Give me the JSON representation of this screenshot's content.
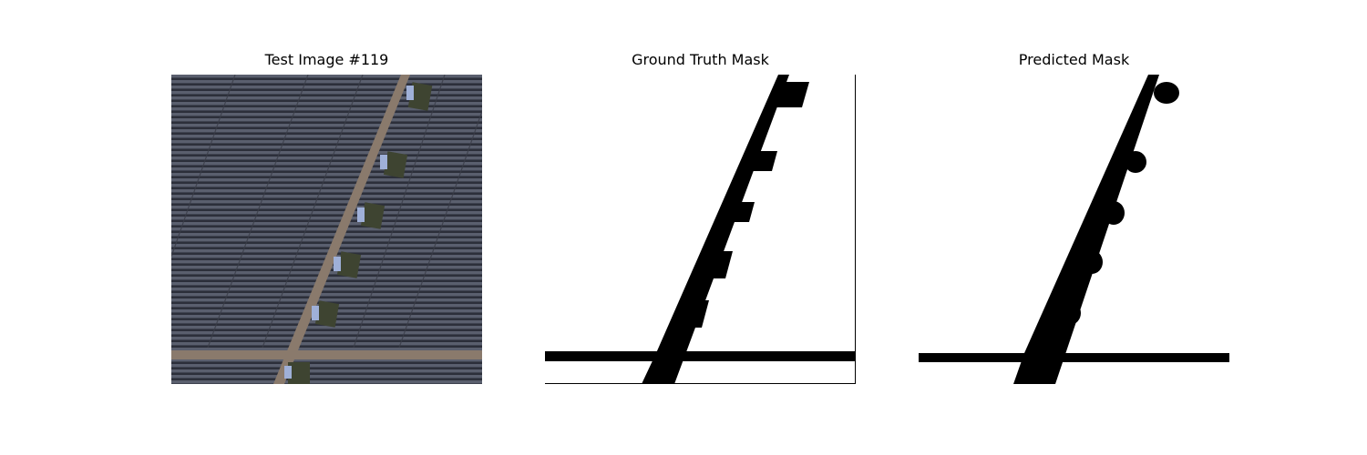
{
  "panels": [
    {
      "title": "Test Image #119"
    },
    {
      "title": "Ground Truth Mask"
    },
    {
      "title": "Predicted Mask"
    }
  ],
  "colors": {
    "panel_bg": "#4a4e5c",
    "panel_row_dark": "#2f323d",
    "road": "#8a7a6c",
    "mask_fg": "#000000",
    "mask_bg": "#ffffff"
  }
}
